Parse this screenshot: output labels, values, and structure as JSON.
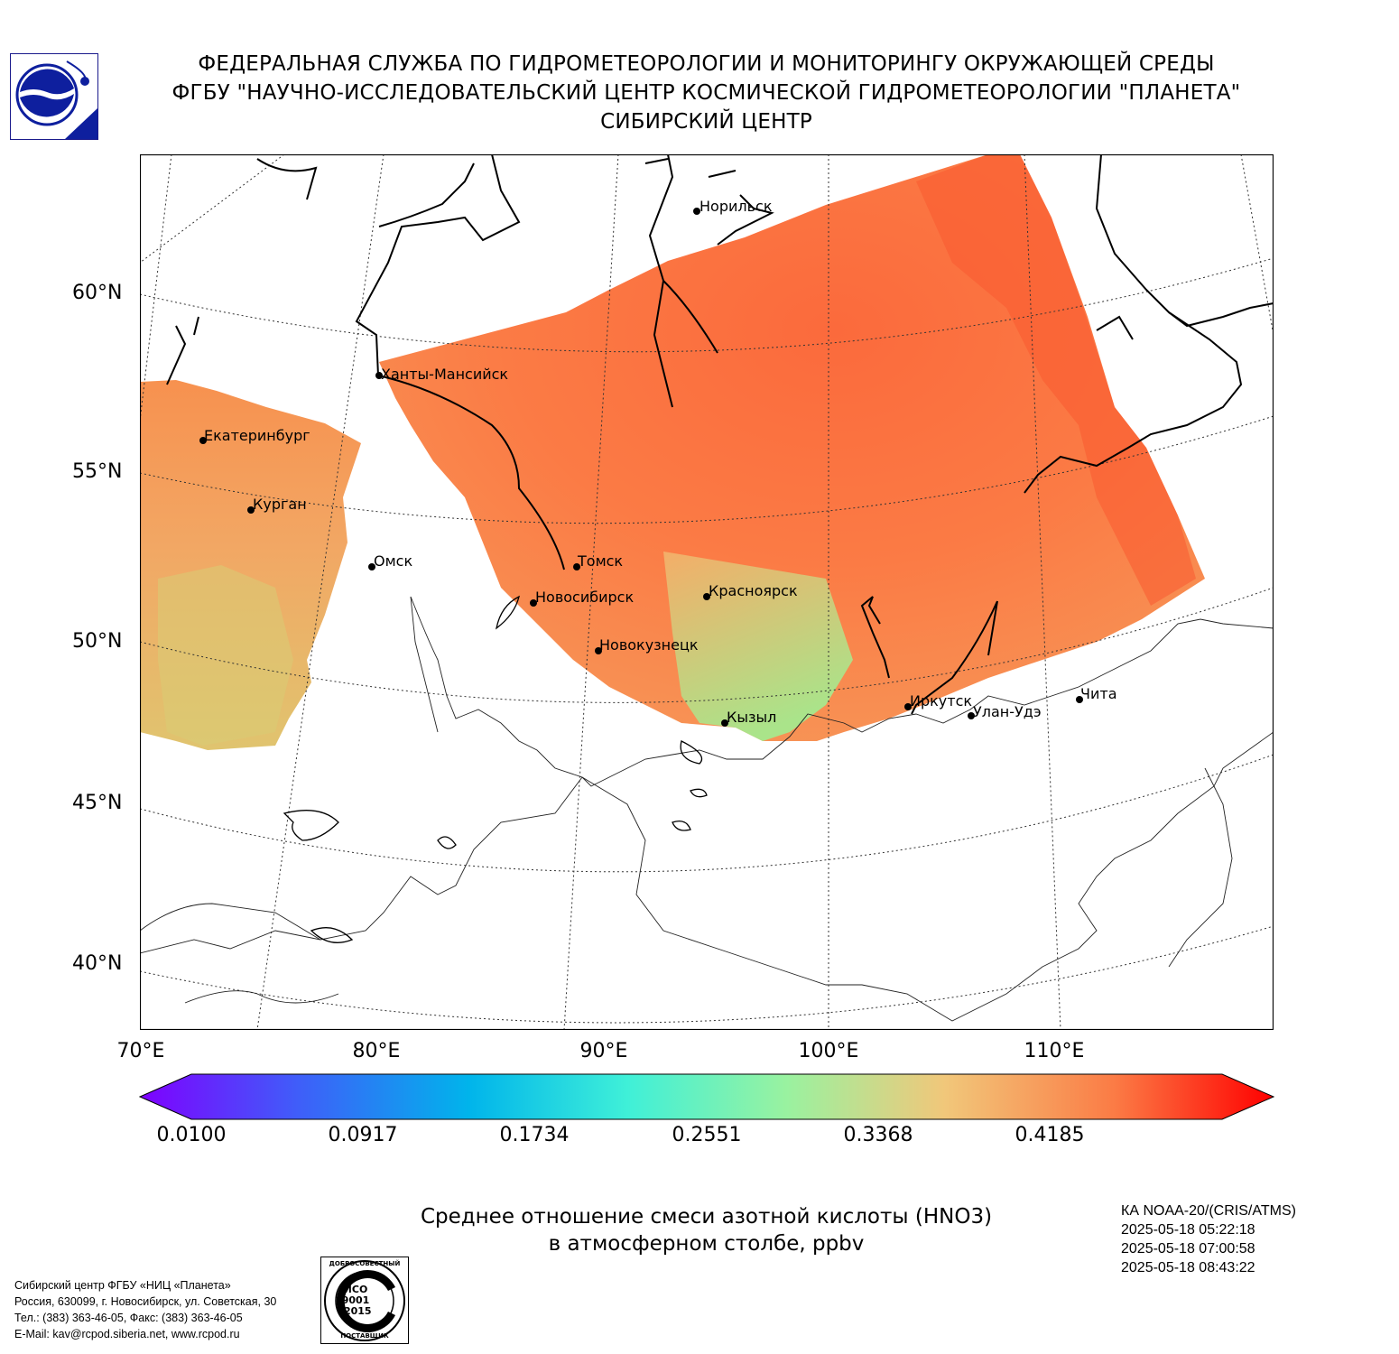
{
  "header": {
    "line1": "ФЕДЕРАЛЬНАЯ СЛУЖБА ПО ГИДРОМЕТЕОРОЛОГИИ И МОНИТОРИНГУ ОКРУЖАЮЩЕЙ СРЕДЫ",
    "line2": "ФГБУ \"НАУЧНО-ИССЛЕДОВАТЕЛЬСКИЙ ЦЕНТР КОСМИЧЕСКОЙ ГИДРОМЕТЕОРОЛОГИИ \"ПЛАНЕТА\"",
    "line3": "СИБИРСКИЙ ЦЕНТР"
  },
  "map": {
    "lat_labels": [
      "60°N",
      "55°N",
      "50°N",
      "45°N",
      "40°N"
    ],
    "lon_labels": [
      "70°E",
      "80°E",
      "90°E",
      "100°E",
      "110°E"
    ],
    "cities": [
      {
        "name": "Норильск"
      },
      {
        "name": "Ханты-Мансийск"
      },
      {
        "name": "Екатеринбург"
      },
      {
        "name": "Курган"
      },
      {
        "name": "Омск"
      },
      {
        "name": "Томск"
      },
      {
        "name": "Новосибирск"
      },
      {
        "name": "Красноярск"
      },
      {
        "name": "Новокузнецк"
      },
      {
        "name": "Кызыл"
      },
      {
        "name": "Иркутск"
      },
      {
        "name": "Улан-Удэ"
      },
      {
        "name": "Чита"
      }
    ]
  },
  "colorbar": {
    "ticks": [
      "0.0100",
      "0.0917",
      "0.1734",
      "0.2551",
      "0.3368",
      "0.4185"
    ],
    "colors": [
      "#7f00ff",
      "#3f5ef9",
      "#00b4eb",
      "#3ff0d8",
      "#99f2a0",
      "#f1c77a",
      "#fb7b45",
      "#ff0000"
    ]
  },
  "title": {
    "line1": "Среднее отношение смеси азотной кислоты (HNO3)",
    "line2": "в атмосферном столбе, ppbv"
  },
  "satellite_info": {
    "line1": "КА NOAA-20/(CRIS/ATMS)",
    "line2": "2025-05-18 05:22:18",
    "line3": "2025-05-18 07:00:58",
    "line4": "2025-05-18 08:43:22"
  },
  "contact": {
    "line1": "Сибирский центр ФГБУ «НИЦ «Планета»",
    "line2": "Россия, 630099, г. Новосибирск, ул. Советская, 30",
    "line3": "Тел.: (383) 363-46-05, Факс: (383) 363-46-05",
    "line4": "E-Mail: kav@rcpod.siberia.net, www.rcpod.ru"
  },
  "iso_badge": {
    "top_text": "ДОБРОСОВЕСТНЫЙ",
    "center_line1": "ИСО",
    "center_line2": "9001",
    "center_line3": "-2015",
    "bottom_text": "ПОСТАВЩИК"
  }
}
